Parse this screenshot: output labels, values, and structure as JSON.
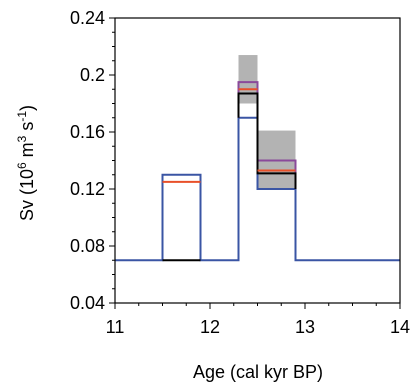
{
  "chart_data": {
    "type": "line",
    "xlabel": "Age (cal kyr BP)",
    "ylabel": "Sv (10⁶ m³ s⁻¹)",
    "ylabel_parts": {
      "prefix": "Sv (10",
      "e1": "6",
      "mid": " m",
      "e2": "3",
      "mid2": " s",
      "e3": "-1",
      "suffix": ")"
    },
    "xlim": [
      11,
      14
    ],
    "ylim": [
      0.04,
      0.24
    ],
    "x_ticks": [
      11,
      12,
      13,
      14
    ],
    "y_ticks": [
      0.04,
      0.08,
      0.12,
      0.16,
      0.2,
      0.24
    ],
    "y_tick_labels": [
      "0.04",
      "0.08",
      "0.12",
      "0.16",
      "0.2",
      "0.24"
    ],
    "x_tick_labels": [
      "11",
      "12",
      "13",
      "14"
    ],
    "grid": false,
    "colors": {
      "blue": "#3a55a4",
      "red": "#e8502a",
      "black": "#000000",
      "purple": "#8a4a9a",
      "gray_fill": "#b3b3b3"
    },
    "uncertainty_boxes": [
      {
        "x0": 12.3,
        "x1": 12.5,
        "y0": 0.18,
        "y1": 0.214
      },
      {
        "x0": 12.5,
        "x1": 12.9,
        "y0": 0.12,
        "y1": 0.161
      }
    ],
    "series": [
      {
        "color_key": "blue",
        "points": [
          [
            11,
            0.07
          ],
          [
            11.5,
            0.07
          ],
          [
            11.5,
            0.13
          ],
          [
            11.9,
            0.13
          ],
          [
            11.9,
            0.07
          ],
          [
            12.3,
            0.07
          ],
          [
            12.3,
            0.17
          ],
          [
            12.5,
            0.17
          ],
          [
            12.5,
            0.12
          ],
          [
            12.9,
            0.12
          ],
          [
            12.9,
            0.07
          ],
          [
            14,
            0.07
          ]
        ]
      },
      {
        "color_key": "red",
        "points": [
          [
            11.5,
            0.125
          ],
          [
            11.9,
            0.125
          ]
        ]
      },
      {
        "color_key": "black",
        "points": [
          [
            11.5,
            0.07
          ],
          [
            11.9,
            0.07
          ]
        ]
      },
      {
        "color_key": "purple",
        "points": [
          [
            12.3,
            0.17
          ],
          [
            12.3,
            0.195
          ],
          [
            12.5,
            0.195
          ],
          [
            12.5,
            0.14
          ],
          [
            12.9,
            0.14
          ],
          [
            12.9,
            0.12
          ]
        ]
      },
      {
        "color_key": "red",
        "points": [
          [
            12.3,
            0.19
          ],
          [
            12.5,
            0.19
          ]
        ]
      },
      {
        "color_key": "black",
        "points": [
          [
            12.3,
            0.17
          ],
          [
            12.3,
            0.187
          ],
          [
            12.5,
            0.187
          ],
          [
            12.5,
            0.131
          ],
          [
            12.9,
            0.131
          ],
          [
            12.9,
            0.12
          ]
        ]
      },
      {
        "color_key": "red",
        "points": [
          [
            12.5,
            0.133
          ],
          [
            12.9,
            0.133
          ]
        ]
      }
    ]
  }
}
